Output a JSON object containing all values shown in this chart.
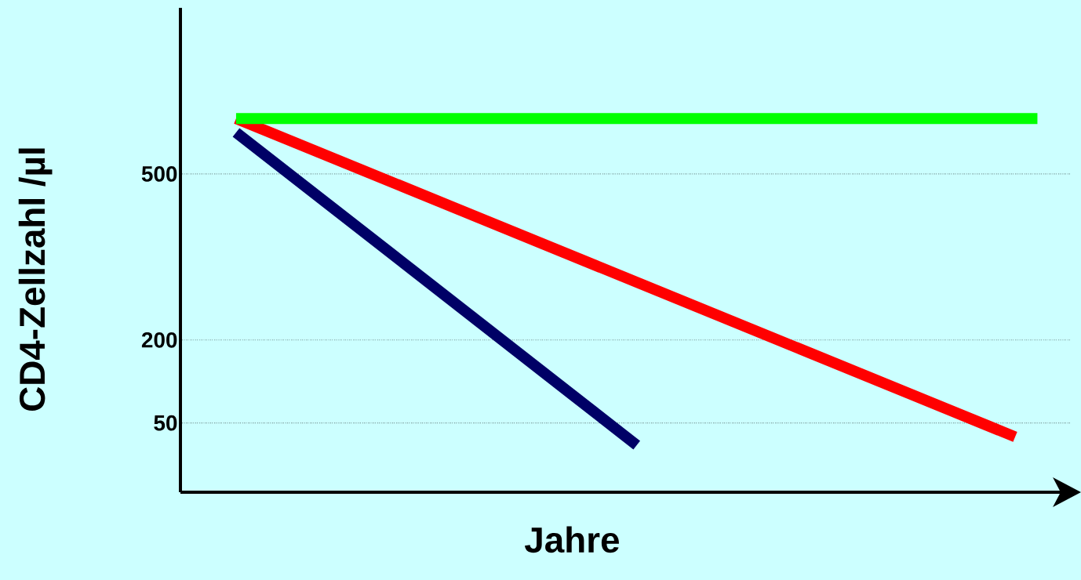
{
  "chart_data": {
    "type": "line",
    "xlabel": "Jahre",
    "ylabel": "CD4-Zellzahl /µl",
    "categories": [
      null,
      null,
      null,
      null,
      null,
      null,
      null,
      null,
      null,
      null,
      null,
      null,
      null,
      null,
      null,
      null,
      null,
      null,
      null,
      null,
      null,
      null,
      null,
      null,
      null,
      null,
      null,
      null,
      null,
      null,
      null,
      null,
      null,
      null,
      null,
      null,
      null,
      null,
      null,
      null
    ],
    "series": [
      {
        "color": "#ff0000",
        "values": [
          null,
          null,
          600,
          null,
          null,
          null,
          null,
          null,
          null,
          null,
          null,
          null,
          null,
          null,
          null,
          null,
          null,
          null,
          null,
          null,
          null,
          null,
          null,
          null,
          null,
          null,
          null,
          null,
          null,
          null,
          null,
          null,
          null,
          null,
          null,
          null,
          null,
          25,
          null,
          null
        ]
      },
      {
        "color": "#000066",
        "values": [
          null,
          null,
          575,
          null,
          null,
          null,
          null,
          null,
          null,
          null,
          null,
          null,
          null,
          null,
          null,
          null,
          null,
          null,
          null,
          null,
          10,
          null,
          null,
          null,
          null,
          null,
          null,
          null,
          null,
          null,
          null,
          null,
          null,
          null,
          null,
          null,
          null,
          null,
          null,
          null
        ]
      },
      {
        "color": "#00ff00",
        "values": [
          null,
          null,
          600,
          null,
          null,
          null,
          null,
          null,
          null,
          null,
          null,
          null,
          null,
          null,
          null,
          null,
          null,
          null,
          null,
          null,
          null,
          null,
          null,
          null,
          null,
          null,
          null,
          null,
          null,
          null,
          null,
          null,
          null,
          null,
          null,
          null,
          null,
          null,
          600,
          null
        ]
      }
    ],
    "ylim": [
      -75,
      800
    ],
    "yticks": [
      50,
      200,
      500
    ],
    "grid": "y",
    "tick_labels": "y",
    "marker": "none",
    "line_style": "solid"
  }
}
